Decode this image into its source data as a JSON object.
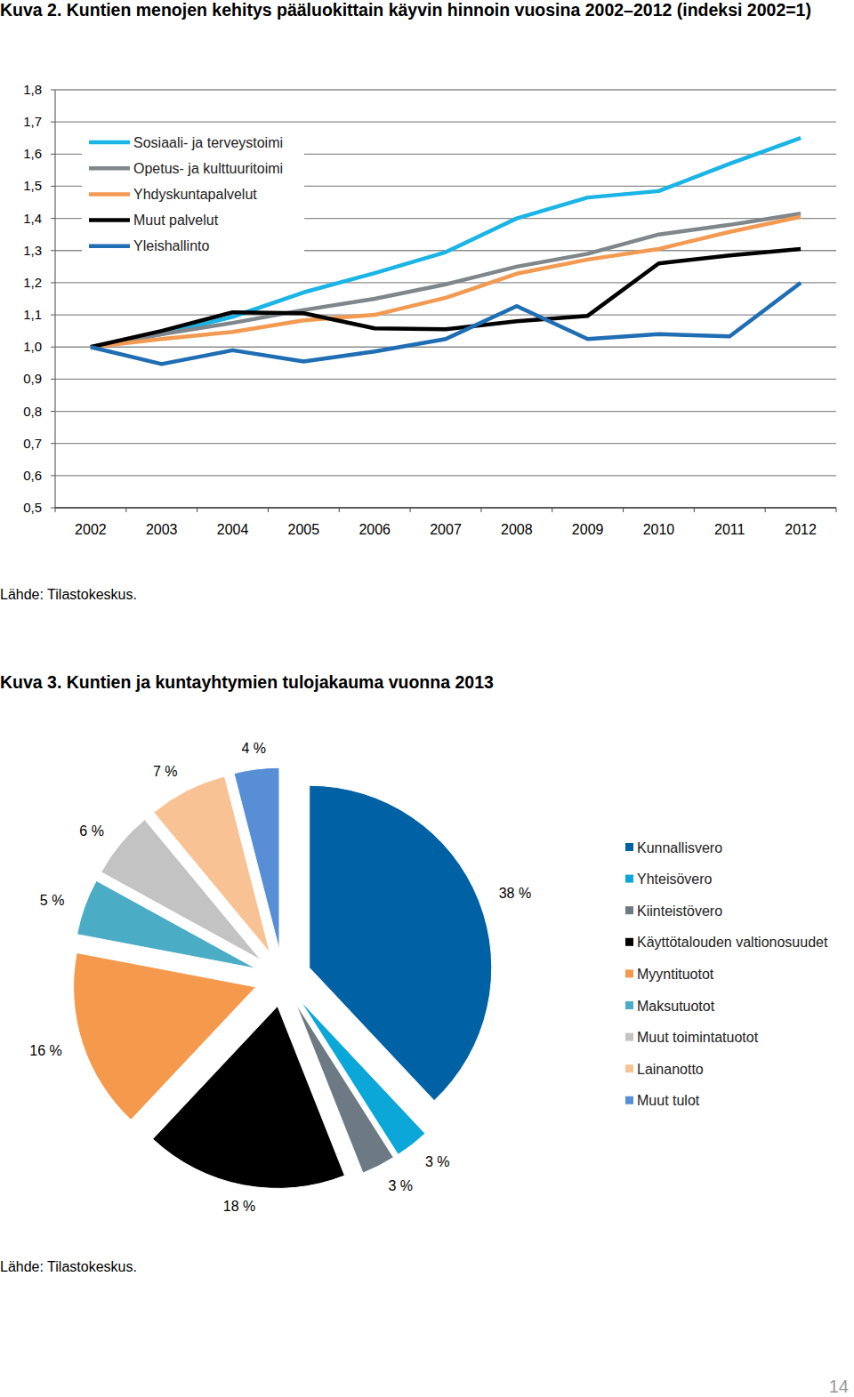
{
  "chart_data": [
    {
      "type": "line",
      "title": "Kuva 2. Kuntien menojen kehitys pääluokittain käyvin hinnoin vuosina 2002–2012 (indeksi 2002=1)",
      "source": "Lähde: Tilastokeskus.",
      "categories": [
        "2002",
        "2003",
        "2004",
        "2005",
        "2006",
        "2007",
        "2008",
        "2009",
        "2010",
        "2011",
        "2012"
      ],
      "series": [
        {
          "name": "Sosiaali- ja terveystoimi",
          "color": "#1ab4e6",
          "values": [
            1.0,
            1.04,
            1.094,
            1.17,
            1.23,
            1.295,
            1.4,
            1.465,
            1.485,
            1.57,
            1.65
          ]
        },
        {
          "name": "Opetus- ja kulttuuritoimi",
          "color": "#7f878c",
          "values": [
            1.0,
            1.04,
            1.075,
            1.115,
            1.15,
            1.195,
            1.25,
            1.29,
            1.35,
            1.38,
            1.415
          ]
        },
        {
          "name": "Yhdyskuntapalvelut",
          "color": "#f39a52",
          "values": [
            1.0,
            1.025,
            1.047,
            1.083,
            1.1,
            1.153,
            1.228,
            1.272,
            1.305,
            1.358,
            1.405
          ]
        },
        {
          "name": "Muut palvelut",
          "color": "#000000",
          "values": [
            1.0,
            1.05,
            1.108,
            1.105,
            1.058,
            1.055,
            1.08,
            1.097,
            1.26,
            1.285,
            1.305
          ]
        },
        {
          "name": "Yleishallinto",
          "color": "#1f6db3",
          "values": [
            1.0,
            0.947,
            0.99,
            0.955,
            0.986,
            1.025,
            1.127,
            1.025,
            1.04,
            1.033,
            1.2
          ]
        }
      ],
      "ylim": [
        0.5,
        1.8
      ],
      "yticks": [
        {
          "value": 0.5,
          "label": "0,5"
        },
        {
          "value": 0.6,
          "label": "0,6"
        },
        {
          "value": 0.7,
          "label": "0,7"
        },
        {
          "value": 0.8,
          "label": "0,8"
        },
        {
          "value": 0.9,
          "label": "0,9"
        },
        {
          "value": 1.0,
          "label": "1,0"
        },
        {
          "value": 1.1,
          "label": "1,1"
        },
        {
          "value": 1.2,
          "label": "1,2"
        },
        {
          "value": 1.3,
          "label": "1,3"
        },
        {
          "value": 1.4,
          "label": "1,4"
        },
        {
          "value": 1.5,
          "label": "1,5"
        },
        {
          "value": 1.6,
          "label": "1,6"
        },
        {
          "value": 1.7,
          "label": "1,7"
        },
        {
          "value": 1.8,
          "label": "1,8"
        }
      ],
      "grid": true,
      "legend": "upper left"
    },
    {
      "type": "pie",
      "title": "Kuva 3. Kuntien ja kuntayhtymien tulojakauma vuonna 2013",
      "source": "Lähde: Tilastokeskus.",
      "categories": [
        "Kunnallisvero",
        "Yhteisövero",
        "Kiinteistövero",
        "Käyttötalouden valtionosuudet",
        "Myyntituotot",
        "Maksutuotot",
        "Muut toimintatuotot",
        "Lainanotto",
        "Muut tulot"
      ],
      "values": [
        38,
        3,
        3,
        18,
        16,
        5,
        6,
        7,
        4
      ],
      "value_labels": [
        "38 %",
        "3 %",
        "3 %",
        "18 %",
        "16 %",
        "5 %",
        "6 %",
        "7 %",
        "4 %"
      ],
      "colors": [
        "#0061a4",
        "#0aa7d8",
        "#6e7a83",
        "#000000",
        "#f5994c",
        "#4bacc6",
        "#c3c3c3",
        "#f9c294",
        "#578ed6"
      ],
      "data_labels": true,
      "legend": "right"
    }
  ],
  "page_number": 14
}
